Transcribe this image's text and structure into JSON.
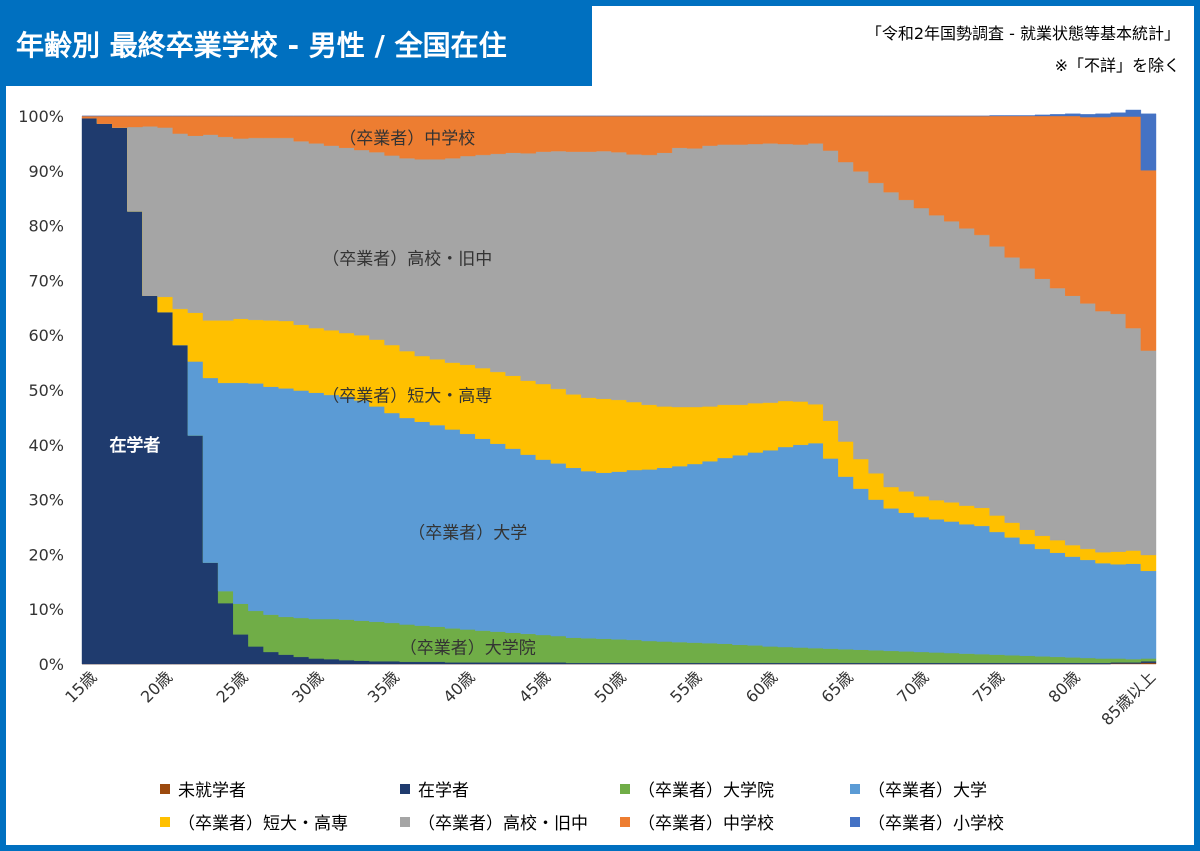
{
  "title": "年齢別 最終卒業学校 - 男性 / 全国在住",
  "source_line1": "「令和2年国勢調査 - 就業状態等基本統計」",
  "source_line2": "※「不詳」を除く",
  "chart_data": {
    "type": "area",
    "stacked": true,
    "x": [
      "15歳",
      "16歳",
      "17歳",
      "18歳",
      "19歳",
      "20歳",
      "21歳",
      "22歳",
      "23歳",
      "24歳",
      "25歳",
      "26歳",
      "27歳",
      "28歳",
      "29歳",
      "30歳",
      "31歳",
      "32歳",
      "33歳",
      "34歳",
      "35歳",
      "36歳",
      "37歳",
      "38歳",
      "39歳",
      "40歳",
      "41歳",
      "42歳",
      "43歳",
      "44歳",
      "45歳",
      "46歳",
      "47歳",
      "48歳",
      "49歳",
      "50歳",
      "51歳",
      "52歳",
      "53歳",
      "54歳",
      "55歳",
      "56歳",
      "57歳",
      "58歳",
      "59歳",
      "60歳",
      "61歳",
      "62歳",
      "63歳",
      "64歳",
      "65歳",
      "66歳",
      "67歳",
      "68歳",
      "69歳",
      "70歳",
      "71歳",
      "72歳",
      "73歳",
      "74歳",
      "75歳",
      "76歳",
      "77歳",
      "78歳",
      "79歳",
      "80歳",
      "81歳",
      "82歳",
      "83歳",
      "84歳",
      "85歳以上"
    ],
    "x_tick_labels": [
      "15歳",
      "20歳",
      "25歳",
      "30歳",
      "35歳",
      "40歳",
      "45歳",
      "50歳",
      "55歳",
      "60歳",
      "65歳",
      "70歳",
      "75歳",
      "80歳",
      "85歳以上"
    ],
    "ylim": [
      0,
      100
    ],
    "y_tick_labels": [
      "0%",
      "10%",
      "20%",
      "30%",
      "40%",
      "50%",
      "60%",
      "70%",
      "80%",
      "90%",
      "100%"
    ],
    "grid": false,
    "legend_position": "bottom",
    "series": [
      {
        "name": "未就学者",
        "color": "#9c4a0e",
        "values": [
          0.0,
          0.0,
          0.0,
          0.0,
          0.0,
          0.0,
          0.0,
          0.0,
          0.0,
          0.0,
          0.0,
          0.0,
          0.0,
          0.0,
          0.0,
          0.0,
          0.0,
          0.0,
          0.0,
          0.0,
          0.0,
          0.0,
          0.0,
          0.0,
          0.0,
          0.0,
          0.0,
          0.0,
          0.0,
          0.0,
          0.0,
          0.0,
          0.0,
          0.0,
          0.0,
          0.0,
          0.0,
          0.0,
          0.0,
          0.0,
          0.0,
          0.0,
          0.0,
          0.0,
          0.0,
          0.0,
          0.0,
          0.0,
          0.0,
          0.0,
          0.0,
          0.0,
          0.0,
          0.0,
          0.0,
          0.0,
          0.0,
          0.0,
          0.0,
          0.0,
          0.0,
          0.0,
          0.0,
          0.0,
          0.0,
          0.0,
          0.0,
          0.0,
          0.1,
          0.1,
          0.2
        ]
      },
      {
        "name": "在学者",
        "color": "#1f3b6e",
        "values": [
          99.6,
          98.6,
          97.9,
          82.6,
          67.2,
          64.2,
          58.2,
          41.7,
          18.5,
          11.1,
          5.4,
          3.2,
          2.2,
          1.7,
          1.3,
          1.0,
          0.9,
          0.7,
          0.6,
          0.5,
          0.5,
          0.4,
          0.4,
          0.4,
          0.3,
          0.3,
          0.3,
          0.3,
          0.3,
          0.3,
          0.3,
          0.3,
          0.2,
          0.2,
          0.2,
          0.2,
          0.2,
          0.2,
          0.2,
          0.2,
          0.2,
          0.2,
          0.2,
          0.2,
          0.2,
          0.2,
          0.2,
          0.2,
          0.2,
          0.2,
          0.2,
          0.2,
          0.2,
          0.2,
          0.2,
          0.2,
          0.2,
          0.2,
          0.2,
          0.2,
          0.2,
          0.2,
          0.2,
          0.2,
          0.2,
          0.2,
          0.2,
          0.2,
          0.2,
          0.2,
          0.3
        ]
      },
      {
        "name": "（卒業者）大学院",
        "color": "#70ad47",
        "values": [
          0.0,
          0.0,
          0.0,
          0.0,
          0.0,
          0.0,
          0.0,
          0.0,
          0.0,
          2.2,
          5.6,
          6.5,
          6.8,
          6.9,
          7.1,
          7.2,
          7.3,
          7.4,
          7.3,
          7.2,
          7.0,
          6.8,
          6.6,
          6.4,
          6.2,
          6.0,
          5.8,
          5.6,
          5.4,
          5.2,
          5.0,
          4.8,
          4.6,
          4.5,
          4.4,
          4.3,
          4.2,
          4.0,
          3.9,
          3.8,
          3.7,
          3.6,
          3.5,
          3.3,
          3.2,
          3.0,
          2.9,
          2.8,
          2.7,
          2.6,
          2.5,
          2.4,
          2.3,
          2.2,
          2.1,
          2.0,
          1.9,
          1.8,
          1.7,
          1.6,
          1.5,
          1.4,
          1.3,
          1.2,
          1.1,
          1.0,
          0.9,
          0.8,
          0.7,
          0.6,
          0.5
        ]
      },
      {
        "name": "（卒業者）大学",
        "color": "#5b9bd5",
        "values": [
          0.0,
          0.0,
          0.0,
          0.0,
          0.0,
          0.0,
          0.0,
          13.5,
          33.7,
          38.0,
          40.3,
          41.5,
          41.6,
          41.7,
          41.5,
          41.3,
          40.9,
          40.7,
          40.2,
          39.3,
          38.3,
          37.7,
          37.2,
          36.8,
          36.3,
          35.7,
          35.0,
          34.3,
          33.6,
          32.7,
          32.0,
          31.5,
          31.0,
          30.5,
          30.3,
          30.6,
          31.0,
          31.3,
          31.7,
          32.1,
          32.6,
          33.2,
          33.9,
          34.6,
          35.2,
          35.8,
          36.5,
          37.0,
          37.4,
          34.7,
          31.5,
          29.4,
          27.5,
          26.0,
          25.3,
          24.6,
          24.3,
          24.0,
          23.6,
          23.4,
          22.4,
          21.5,
          20.4,
          19.6,
          19.0,
          18.4,
          17.9,
          17.4,
          17.2,
          17.4,
          16.0
        ]
      },
      {
        "name": "（卒業者）短大・高専",
        "color": "#ffc000",
        "values": [
          0.0,
          0.0,
          0.0,
          0.0,
          0.0,
          2.8,
          6.6,
          8.9,
          10.5,
          11.4,
          11.7,
          11.6,
          12.1,
          12.3,
          12.0,
          11.8,
          11.8,
          11.6,
          11.9,
          12.2,
          12.4,
          12.2,
          12.0,
          12.0,
          12.2,
          12.6,
          12.9,
          13.1,
          13.3,
          13.5,
          13.8,
          13.6,
          13.4,
          13.4,
          13.5,
          13.1,
          12.4,
          11.8,
          11.2,
          10.8,
          10.4,
          10.0,
          9.7,
          9.2,
          9.0,
          8.7,
          8.4,
          7.9,
          7.1,
          6.9,
          6.4,
          5.4,
          4.8,
          3.9,
          3.9,
          3.8,
          3.5,
          3.5,
          3.4,
          3.3,
          3.0,
          2.7,
          2.6,
          2.4,
          2.3,
          2.1,
          2.0,
          2.0,
          2.3,
          2.4,
          2.9
        ]
      },
      {
        "name": "（卒業者）高校・旧中",
        "color": "#a5a5a5",
        "values": [
          0.0,
          0.0,
          0.0,
          15.4,
          30.9,
          30.9,
          32.0,
          32.3,
          33.9,
          33.5,
          32.9,
          33.2,
          33.3,
          33.4,
          33.5,
          33.7,
          33.7,
          33.8,
          33.8,
          34.2,
          34.6,
          35.2,
          35.9,
          36.5,
          37.3,
          38.1,
          38.9,
          39.8,
          40.7,
          41.5,
          42.4,
          43.4,
          44.3,
          44.9,
          45.2,
          45.2,
          45.2,
          45.6,
          46.3,
          47.3,
          47.2,
          47.6,
          47.5,
          47.5,
          47.3,
          47.3,
          46.9,
          46.9,
          47.6,
          49.3,
          51.0,
          52.5,
          53.0,
          53.8,
          53.2,
          52.6,
          52.0,
          51.3,
          50.6,
          49.8,
          49.1,
          48.4,
          47.7,
          46.9,
          46.0,
          45.5,
          44.8,
          44.0,
          43.4,
          40.6,
          37.3
        ]
      },
      {
        "name": "（卒業者）中学校",
        "color": "#ed7d31",
        "values": [
          0.4,
          1.4,
          2.1,
          2.0,
          1.9,
          2.1,
          3.2,
          3.6,
          3.4,
          3.8,
          4.1,
          4.0,
          4.0,
          4.0,
          4.6,
          5.0,
          5.4,
          5.8,
          6.2,
          6.6,
          7.2,
          7.7,
          7.9,
          7.9,
          7.7,
          7.3,
          7.1,
          6.9,
          6.7,
          6.8,
          6.5,
          6.4,
          6.5,
          6.5,
          6.4,
          6.6,
          7.0,
          7.1,
          6.7,
          5.8,
          5.9,
          5.4,
          5.2,
          5.2,
          5.1,
          5.0,
          5.1,
          5.2,
          5.0,
          6.3,
          8.4,
          10.1,
          12.2,
          13.9,
          15.3,
          16.8,
          18.1,
          19.2,
          20.5,
          21.7,
          23.8,
          25.8,
          27.8,
          29.7,
          31.4,
          32.8,
          34.0,
          35.4,
          36.0,
          38.6,
          32.9
        ]
      },
      {
        "name": "（卒業者）小学校",
        "color": "#4472c4",
        "values": [
          0.0,
          0.0,
          0.0,
          0.0,
          0.0,
          0.0,
          0.0,
          0.0,
          0.0,
          0.0,
          0.0,
          0.0,
          0.0,
          0.0,
          0.0,
          0.0,
          0.0,
          0.0,
          0.0,
          0.0,
          0.0,
          0.0,
          0.0,
          0.0,
          0.0,
          0.0,
          0.0,
          0.0,
          0.0,
          0.0,
          0.0,
          0.0,
          0.0,
          0.0,
          0.0,
          0.0,
          0.0,
          0.0,
          0.0,
          0.0,
          0.0,
          0.0,
          0.0,
          0.0,
          0.0,
          0.0,
          0.0,
          0.0,
          0.0,
          0.0,
          0.0,
          0.0,
          0.0,
          0.0,
          0.0,
          0.0,
          0.0,
          0.0,
          0.0,
          0.0,
          0.1,
          0.1,
          0.1,
          0.2,
          0.3,
          0.4,
          0.5,
          0.6,
          0.7,
          1.2,
          10.3
        ]
      }
    ],
    "annotations": [
      {
        "text": "（卒業者）中学校",
        "series": "（卒業者）中学校",
        "x": "36歳",
        "y": 96
      },
      {
        "text": "（卒業者）高校・旧中",
        "series": "（卒業者）高校・旧中",
        "x": "36歳",
        "y": 74
      },
      {
        "text": "（卒業者）短大・高専",
        "series": "（卒業者）短大・高専",
        "x": "36歳",
        "y": 49
      },
      {
        "text": "在学者",
        "series": "在学者",
        "x": "18歳",
        "y": 40
      },
      {
        "text": "（卒業者）大学",
        "series": "（卒業者）大学",
        "x": "40歳",
        "y": 24
      },
      {
        "text": "（卒業者）大学院",
        "series": "（卒業者）大学院",
        "x": "40歳",
        "y": 3
      }
    ]
  }
}
